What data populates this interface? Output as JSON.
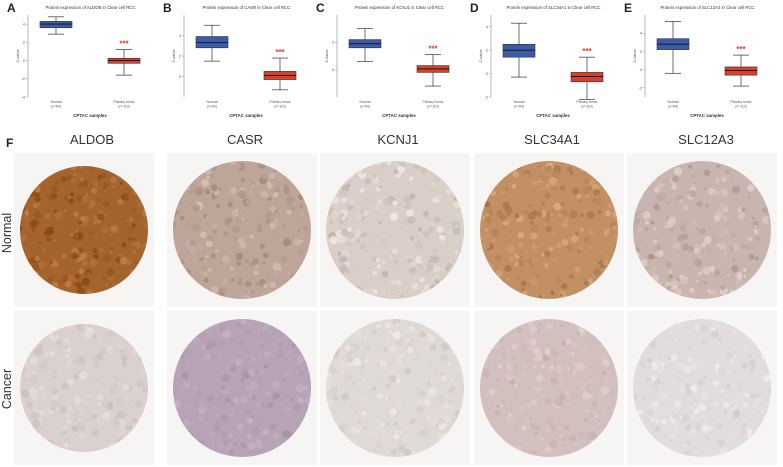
{
  "panels": [
    "A",
    "B",
    "C",
    "D",
    "E"
  ],
  "chart_data": [
    {
      "type": "box",
      "title": "Protein expression of ALDOB in Clear cell RCC",
      "xlabel": "CPTAC samples",
      "ylabel": "Z-value",
      "categories": [
        "Normal\n(n=84)",
        "Primary tumor\n(n=110)"
      ],
      "sig": "***",
      "ylim": [
        -4,
        5
      ],
      "yticks": [
        "4",
        "2",
        "0",
        "-2",
        "-4"
      ],
      "series": [
        {
          "min": 2.9,
          "q1": 3.6,
          "median": 4.0,
          "q3": 4.3,
          "max": 4.8,
          "color": "#3b5aa8"
        },
        {
          "min": -1.6,
          "q1": -0.3,
          "median": 0.0,
          "q3": 0.25,
          "max": 1.2,
          "color": "#d9402a"
        }
      ]
    },
    {
      "type": "box",
      "title": "Protein expression of CASR in Clear cell RCC",
      "xlabel": "CPTAC samples",
      "ylabel": "Z-value",
      "categories": [
        "Normal\n(n=84)",
        "Primary tumor\n(n=110)"
      ],
      "sig": "***",
      "ylim": [
        -2,
        6
      ],
      "yticks": [
        "4",
        "2",
        "0"
      ],
      "series": [
        {
          "min": 1.5,
          "q1": 2.8,
          "median": 3.3,
          "q3": 3.9,
          "max": 5.0,
          "color": "#3b5aa8"
        },
        {
          "min": -1.3,
          "q1": -0.3,
          "median": 0.1,
          "q3": 0.5,
          "max": 1.8,
          "color": "#d9402a"
        }
      ]
    },
    {
      "type": "box",
      "title": "Protein expression of KCNJ1 in Clear cell RCC",
      "xlabel": "CPTAC samples",
      "ylabel": "Z-value",
      "categories": [
        "Normal\n(n=84)",
        "Primary tumor\n(n=110)"
      ],
      "sig": "***",
      "ylim": [
        -2,
        4
      ],
      "yticks": [
        "2",
        "0"
      ],
      "series": [
        {
          "min": 0.6,
          "q1": 1.6,
          "median": 1.9,
          "q3": 2.2,
          "max": 3.0,
          "color": "#3b5aa8"
        },
        {
          "min": -1.2,
          "q1": -0.2,
          "median": 0.05,
          "q3": 0.3,
          "max": 1.1,
          "color": "#d9402a"
        }
      ]
    },
    {
      "type": "box",
      "title": "Protein expression of SLC34A1 in Clear cell RCC",
      "xlabel": "CPTAC samples",
      "ylabel": "Z-value",
      "categories": [
        "Normal\n(n=84)",
        "Primary tumor\n(n=110)"
      ],
      "sig": "***",
      "ylim": [
        -2,
        5
      ],
      "yticks": [
        "4",
        "2",
        "0",
        "-2"
      ],
      "series": [
        {
          "min": -0.3,
          "q1": 1.4,
          "median": 2.0,
          "q3": 2.5,
          "max": 4.3,
          "color": "#3b5aa8"
        },
        {
          "min": -2.2,
          "q1": -0.7,
          "median": -0.25,
          "q3": 0.1,
          "max": 1.4,
          "color": "#d9402a"
        }
      ]
    },
    {
      "type": "box",
      "title": "Protein expression of SLC12A3 in Clear cell RCC",
      "xlabel": "CPTAC samples",
      "ylabel": "Z-value",
      "categories": [
        "Normal\n(n=84)",
        "Primary tumor\n(n=110)"
      ],
      "sig": "***",
      "ylim": [
        -3,
        6
      ],
      "yticks": [
        "4",
        "2",
        "0",
        "-2"
      ],
      "series": [
        {
          "min": -0.4,
          "q1": 2.2,
          "median": 2.8,
          "q3": 3.4,
          "max": 5.3,
          "color": "#3b5aa8"
        },
        {
          "min": -1.8,
          "q1": -0.6,
          "median": -0.1,
          "q3": 0.3,
          "max": 1.6,
          "color": "#d9402a"
        }
      ]
    }
  ],
  "ihc": {
    "letter": "F",
    "genes": [
      "ALDOB",
      "CASR",
      "KCNJ1",
      "SLC34A1",
      "SLC12A3"
    ],
    "rows": [
      "Normal",
      "Cancer"
    ],
    "normal_colors": [
      "#a5642e",
      "#bda59a",
      "#d9cfc8",
      "#c39066",
      "#c9b5b0"
    ],
    "cancer_colors": [
      "#d9d0cf",
      "#b6a4b6",
      "#e0dad6",
      "#d2c0be",
      "#e3dcdc"
    ]
  }
}
